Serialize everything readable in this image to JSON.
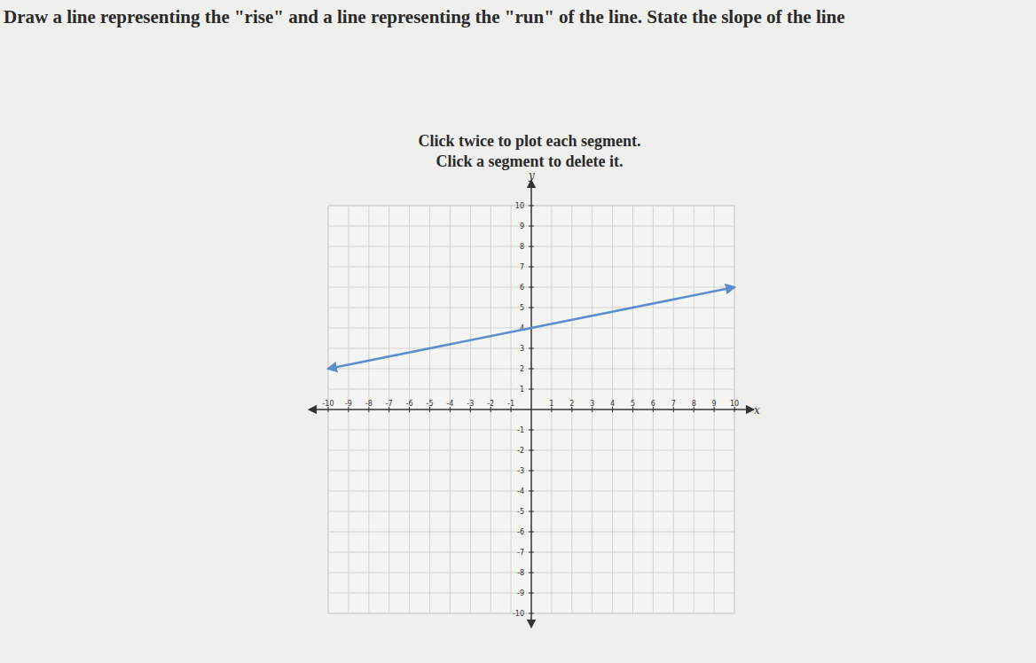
{
  "chart_data": {
    "type": "line",
    "title": "Draw a line representing the \"rise\" and a line representing the \"run\" of the line. State the slope of the line",
    "annotations": [
      "Click twice to plot each segment.",
      "Click a segment to delete it."
    ],
    "x_label": "x",
    "y_label": "y",
    "x": [
      -10,
      10
    ],
    "values": [
      2,
      6
    ],
    "color": "#5b8fcc",
    "xlim": [
      -10,
      10
    ],
    "ylim": [
      -10,
      10
    ],
    "xticks": [
      -10,
      -9,
      -8,
      -7,
      -6,
      -5,
      -4,
      -3,
      -2,
      -1,
      1,
      2,
      3,
      4,
      5,
      6,
      7,
      8,
      9,
      10
    ],
    "yticks": [
      -10,
      -9,
      -8,
      -7,
      -6,
      -5,
      -4,
      -3,
      -2,
      -1,
      1,
      2,
      3,
      4,
      5,
      6,
      7,
      8,
      9,
      10
    ],
    "grid": true
  }
}
